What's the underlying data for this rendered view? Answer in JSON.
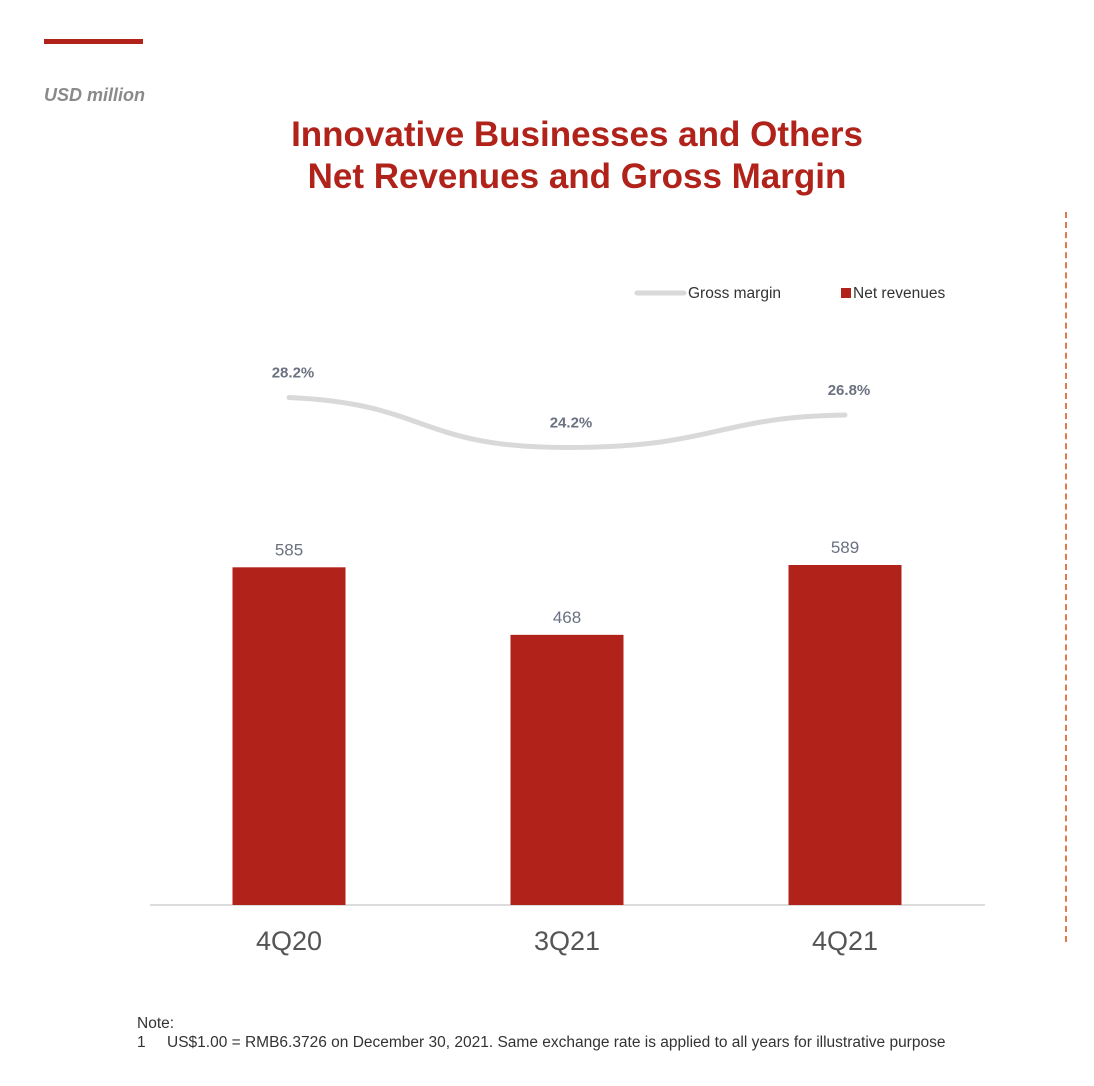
{
  "header": {
    "unit_label": "USD million",
    "title_line1": "Innovative Businesses and Others",
    "title_line2": "Net Revenues and Gross Margin"
  },
  "colors": {
    "accent": "#b0221a",
    "bar": "#b0221a",
    "line": "#d9d9d9",
    "value_label": "#6b7180",
    "divider": "#e07a4a"
  },
  "chart_data": {
    "type": "bar",
    "categories": [
      "4Q20",
      "3Q21",
      "4Q21"
    ],
    "series": [
      {
        "name": "Net revenues",
        "kind": "bar",
        "values": [
          585,
          468,
          589
        ],
        "labels": [
          "585",
          "468",
          "589"
        ]
      },
      {
        "name": "Gross margin",
        "kind": "line",
        "values": [
          28.2,
          24.2,
          26.8
        ],
        "labels": [
          "28.2%",
          "24.2%",
          "26.8%"
        ]
      }
    ],
    "legend": {
      "position": "top-right",
      "items": [
        {
          "label": "Gross margin",
          "marker": "line"
        },
        {
          "label": "Net revenues",
          "marker": "square"
        }
      ]
    },
    "ylim": [
      0,
      589
    ],
    "grid": false
  },
  "notes": {
    "heading": "Note:",
    "items": [
      {
        "num": "1",
        "text": "US$1.00 = RMB6.3726 on December 30, 2021. Same exchange rate is applied to all years for illustrative purpose"
      }
    ]
  }
}
